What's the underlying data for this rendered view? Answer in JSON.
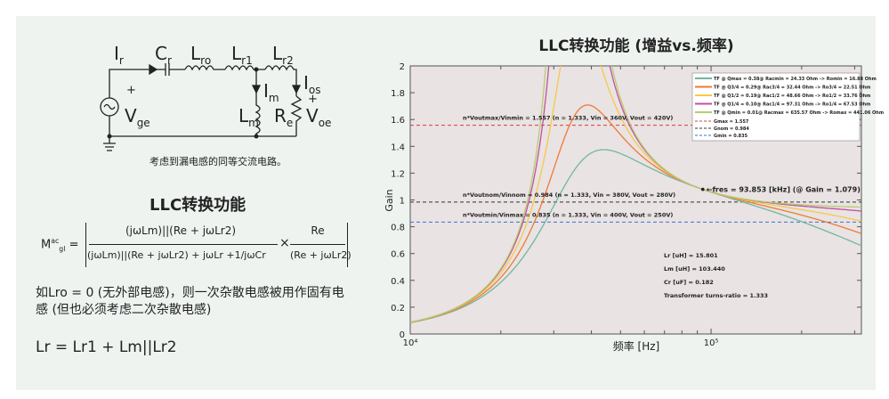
{
  "circuit": {
    "labels": {
      "ir": "I",
      "ir_sub": "r",
      "cr": "C",
      "cr_sub": "r",
      "lro": "L",
      "lro_sub": "ro",
      "lr1": "L",
      "lr1_sub": "r1",
      "lr2": "L",
      "lr2_sub": "r2",
      "ios": "I",
      "ios_sub": "os",
      "im": "I",
      "im_sub": "m",
      "lm": "L",
      "lm_sub": "m",
      "re": "R",
      "re_sub": "e",
      "vge": "V",
      "vge_sub": "ge",
      "voe": "V",
      "voe_sub": "oe",
      "plus": "+"
    },
    "caption": "考虑到漏电感的同等交流电路。"
  },
  "section_title": "LLC转换功能",
  "formula": {
    "lhs": "M",
    "lhs_sup": "ac",
    "lhs_sub": "gl",
    "eq": "=",
    "num1": "(jωLm)||(Re + jωLr2)",
    "den1": "(jωLm)||(Re + jωLr2) + jωLr +1/jωCr",
    "times": "×",
    "num2": "Re",
    "den2": "(Re + jωLr2)"
  },
  "note": "如Lro = 0 (无外部电感)，则一次杂散电感被用作固有电感 (但也必须考虑二次杂散电感)",
  "lr_eq": "Lr = Lr1 + Lm||Lr2",
  "chart_data": {
    "type": "line",
    "title": "LLC转换功能 (增益vs.频率)",
    "xlabel": "频率 [Hz]",
    "ylabel": "Gain",
    "xscale": "log",
    "xlim": [
      10000,
      316000
    ],
    "ylim": [
      0,
      2
    ],
    "yticks": [
      "0",
      "0.2",
      "0.4",
      "0.6",
      "0.8",
      "1",
      "1.2",
      "1.4",
      "1.6",
      "1.8",
      "2"
    ],
    "xticks": [
      {
        "v": 10000,
        "label": "10⁴"
      },
      {
        "v": 100000,
        "label": "10⁵"
      }
    ],
    "params": {
      "Lr_uH": 15.801,
      "Lm_uH": 103.44,
      "Cr_uF": 0.182,
      "n": 1.333,
      "gain_scale": 1.079
    },
    "series": [
      {
        "name": "TF @ Qmax = 0.38@ Racmin = 24.33 Ohm -> Romin = 16.88 Ohm",
        "Rac": 24.33,
        "color": "#6fb8a3"
      },
      {
        "name": "TF @ Q3/4 = 0.29@ Rac3/4 = 32.44 Ohm -> Ro3/4 = 22.51 Ohm",
        "Rac": 32.44,
        "color": "#f07a35"
      },
      {
        "name": "TF @ Q1/2 = 0.19@ Rac1/2 = 48.66 Ohm -> Ro1/2 = 33.76 Ohm",
        "Rac": 48.66,
        "color": "#f5c94a"
      },
      {
        "name": "TF @ Q1/4 = 0.10@ Rac1/4 = 97.31 Ohm -> Ro1/4 = 67.53 Ohm",
        "Rac": 97.31,
        "color": "#c2509f"
      },
      {
        "name": "TF @ Qmin = 0.01@ Racmax = 635.57 Ohm -> Romax = 441.06 Ohm",
        "Rac": 635.57,
        "color": "#b6cc70"
      }
    ],
    "hlines": [
      {
        "name": "Gmax = 1.557",
        "value": 1.557,
        "color": "#e03a3a",
        "label": "n*Voutmax/Vinmin = 1.557 (n = 1.333, Vin = 360V, Vout = 420V)"
      },
      {
        "name": "Gnom = 0.984",
        "value": 0.984,
        "color": "#333333",
        "label": "n*Voutnom/Vinnom = 0.984 (n = 1.333, Vin = 380V, Vout = 280V)"
      },
      {
        "name": "Gmin = 0.835",
        "value": 0.835,
        "color": "#3a72d0",
        "label": "n*Voutmin/Vinmax = 0.835 (n = 1.333, Vin = 400V, Vout = 250V)"
      }
    ],
    "annotation": {
      "text": "←fres = 93.853 [kHz] (@ Gain = 1.079)",
      "x": 93853,
      "y": 1.079
    },
    "info": [
      "Lr [uH] = 15.801",
      "Lm [uH] = 103.440",
      "Cr [uF] = 0.182",
      "Transformer turns-ratio = 1.333"
    ]
  }
}
